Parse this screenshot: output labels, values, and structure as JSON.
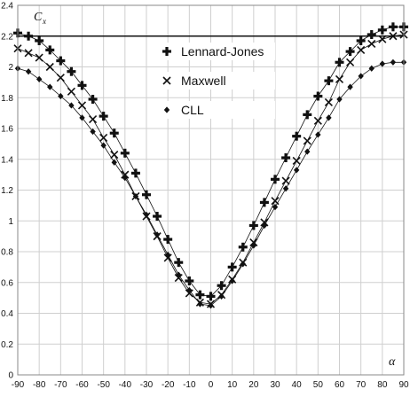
{
  "chart_data": {
    "type": "line",
    "ylabel": "C",
    "ylabel_sub": "x",
    "xlabel": "α",
    "xlim": [
      -90,
      90
    ],
    "ylim": [
      0,
      2.4
    ],
    "x_ticks": [
      -90,
      -80,
      -70,
      -60,
      -50,
      -40,
      -30,
      -20,
      -10,
      0,
      10,
      20,
      30,
      40,
      50,
      60,
      70,
      80,
      90
    ],
    "y_ticks": [
      0,
      0.2,
      0.4,
      0.6,
      0.8,
      1,
      1.2,
      1.4,
      1.6,
      1.8,
      2,
      2.2,
      2.4
    ],
    "y_tick_labels": [
      "0",
      "0.2",
      "0.4",
      "0.6",
      "0.8",
      "1",
      "1.2",
      "1.4",
      "1.6",
      "1.8",
      "2",
      "2.2",
      "2.4"
    ],
    "grid": true,
    "reference_line": 2.2,
    "legend_position": "top-center",
    "series": [
      {
        "name": "Lennard-Jones",
        "marker": "plus",
        "x": [
          -90,
          -85,
          -80,
          -75,
          -70,
          -65,
          -60,
          -55,
          -50,
          -45,
          -40,
          -35,
          -30,
          -25,
          -20,
          -15,
          -10,
          -5,
          0,
          5,
          10,
          15,
          20,
          25,
          30,
          35,
          40,
          45,
          50,
          55,
          60,
          65,
          70,
          75,
          80,
          85,
          90
        ],
        "values": [
          2.22,
          2.2,
          2.17,
          2.11,
          2.04,
          1.97,
          1.88,
          1.79,
          1.68,
          1.57,
          1.44,
          1.31,
          1.17,
          1.03,
          0.88,
          0.73,
          0.61,
          0.52,
          0.51,
          0.58,
          0.7,
          0.83,
          0.97,
          1.12,
          1.27,
          1.41,
          1.55,
          1.69,
          1.81,
          1.91,
          2.03,
          2.1,
          2.17,
          2.21,
          2.24,
          2.26,
          2.26
        ]
      },
      {
        "name": "Maxwell",
        "marker": "cross",
        "x": [
          -90,
          -85,
          -80,
          -75,
          -70,
          -65,
          -60,
          -55,
          -50,
          -45,
          -40,
          -35,
          -30,
          -25,
          -20,
          -15,
          -10,
          -5,
          0,
          5,
          10,
          15,
          20,
          25,
          30,
          35,
          40,
          45,
          50,
          55,
          60,
          65,
          70,
          75,
          80,
          85,
          90
        ],
        "values": [
          2.12,
          2.09,
          2.06,
          2.0,
          1.93,
          1.84,
          1.75,
          1.66,
          1.54,
          1.43,
          1.3,
          1.16,
          1.03,
          0.9,
          0.76,
          0.63,
          0.53,
          0.47,
          0.46,
          0.52,
          0.62,
          0.73,
          0.86,
          0.99,
          1.13,
          1.26,
          1.39,
          1.52,
          1.65,
          1.77,
          1.92,
          2.03,
          2.11,
          2.15,
          2.18,
          2.2,
          2.21
        ]
      },
      {
        "name": "CLL",
        "marker": "diamond",
        "x": [
          -90,
          -85,
          -80,
          -75,
          -70,
          -65,
          -60,
          -55,
          -50,
          -45,
          -40,
          -35,
          -30,
          -25,
          -20,
          -15,
          -10,
          -5,
          0,
          5,
          10,
          15,
          20,
          25,
          30,
          35,
          40,
          45,
          50,
          55,
          60,
          65,
          70,
          75,
          80,
          85,
          90
        ],
        "values": [
          1.99,
          1.97,
          1.92,
          1.87,
          1.81,
          1.75,
          1.67,
          1.58,
          1.49,
          1.38,
          1.28,
          1.16,
          1.04,
          0.91,
          0.78,
          0.65,
          0.55,
          0.46,
          0.45,
          0.51,
          0.61,
          0.72,
          0.84,
          0.97,
          1.09,
          1.21,
          1.33,
          1.45,
          1.56,
          1.67,
          1.79,
          1.87,
          1.94,
          1.99,
          2.02,
          2.03,
          2.03
        ]
      }
    ]
  }
}
